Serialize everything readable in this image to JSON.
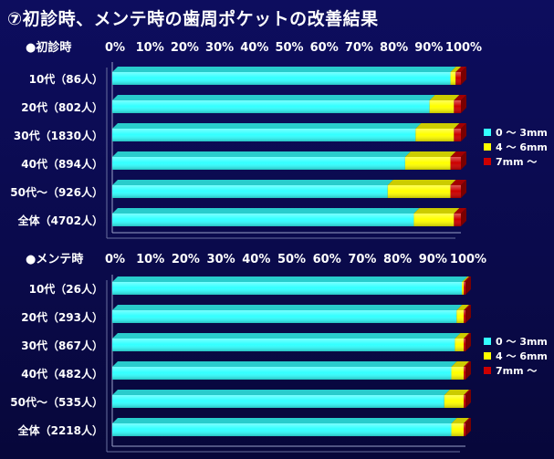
{
  "title": "⑦初診時、メンテ時の歯周ポケットの改善結果",
  "colors": {
    "seg0": "#33ffff",
    "seg1": "#ffff00",
    "seg2": "#cc0000"
  },
  "chart_data": [
    {
      "type": "bar",
      "orientation": "horizontal",
      "stacked": true,
      "title": "●初診時",
      "categories": [
        "10代（86人）",
        "20代（802人）",
        "30代（1830人）",
        "40代（894人）",
        "50代〜（926人）",
        "全体（4702人）"
      ],
      "series": [
        {
          "name": "0 〜 3mm",
          "values": [
            97,
            91,
            87,
            84,
            79,
            86.5
          ]
        },
        {
          "name": "4 〜 6mm",
          "values": [
            1.5,
            7,
            11,
            13,
            18,
            11.5
          ]
        },
        {
          "name": "7mm 〜",
          "values": [
            1.5,
            2,
            2,
            3,
            3,
            2
          ]
        }
      ],
      "xlim": [
        0,
        100
      ],
      "ticks": [
        "0%",
        "10%",
        "20%",
        "30%",
        "40%",
        "50%",
        "60%",
        "70%",
        "80%",
        "90%",
        "100%"
      ],
      "legend": "right"
    },
    {
      "type": "bar",
      "orientation": "horizontal",
      "stacked": true,
      "title": "●メンテ時",
      "categories": [
        "10代（26人）",
        "20代（293人）",
        "30代（867人）",
        "40代（482人）",
        "50代〜（535人）",
        "全体（2218人）"
      ],
      "series": [
        {
          "name": "0 〜 3mm",
          "values": [
            99,
            97.5,
            97,
            96,
            94,
            96
          ]
        },
        {
          "name": "4 〜 6mm",
          "values": [
            0.5,
            2,
            2.5,
            3.5,
            5.5,
            3.5
          ]
        },
        {
          "name": "7mm 〜",
          "values": [
            0.5,
            0.5,
            0.5,
            0.5,
            0.5,
            0.5
          ]
        }
      ],
      "xlim": [
        0,
        100
      ],
      "ticks": [
        "0%",
        "10%",
        "20%",
        "30%",
        "40%",
        "50%",
        "60%",
        "70%",
        "80%",
        "90%",
        "100%"
      ],
      "legend": "right"
    }
  ]
}
